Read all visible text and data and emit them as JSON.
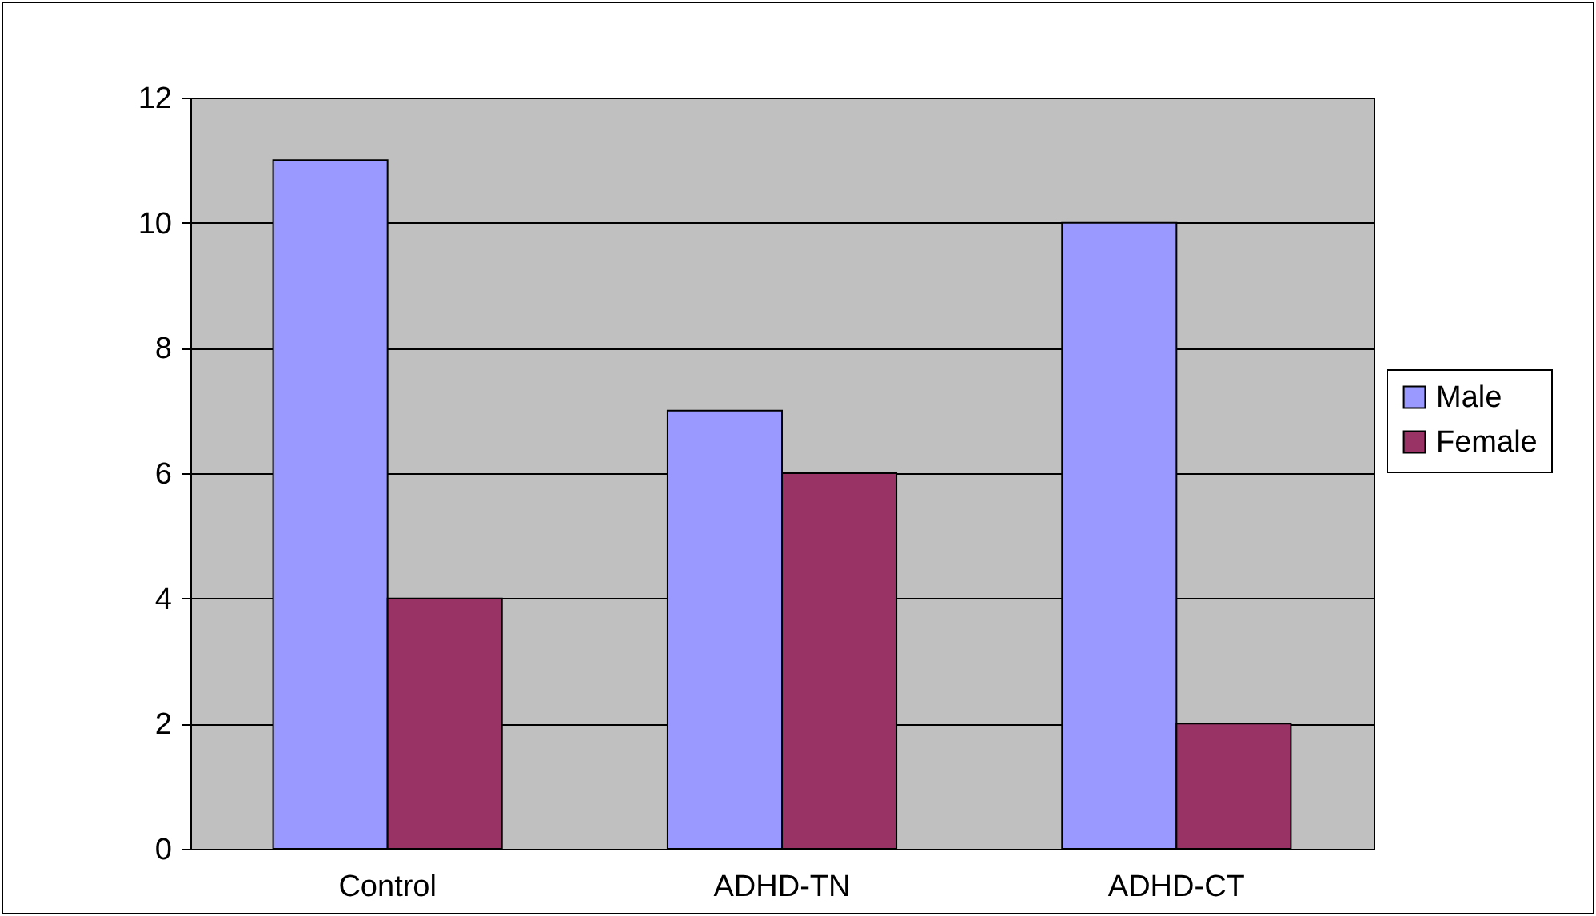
{
  "chart_data": {
    "type": "bar",
    "categories": [
      "Control",
      "ADHD-TN",
      "ADHD-CT"
    ],
    "series": [
      {
        "name": "Male",
        "color": "#9999ff",
        "values": [
          11,
          7,
          10
        ]
      },
      {
        "name": "Female",
        "color": "#993366",
        "values": [
          4,
          6,
          2
        ]
      }
    ],
    "ylim": [
      0,
      12
    ],
    "yticks": [
      0,
      2,
      4,
      6,
      8,
      10,
      12
    ],
    "grid": "y",
    "legend": "right"
  }
}
